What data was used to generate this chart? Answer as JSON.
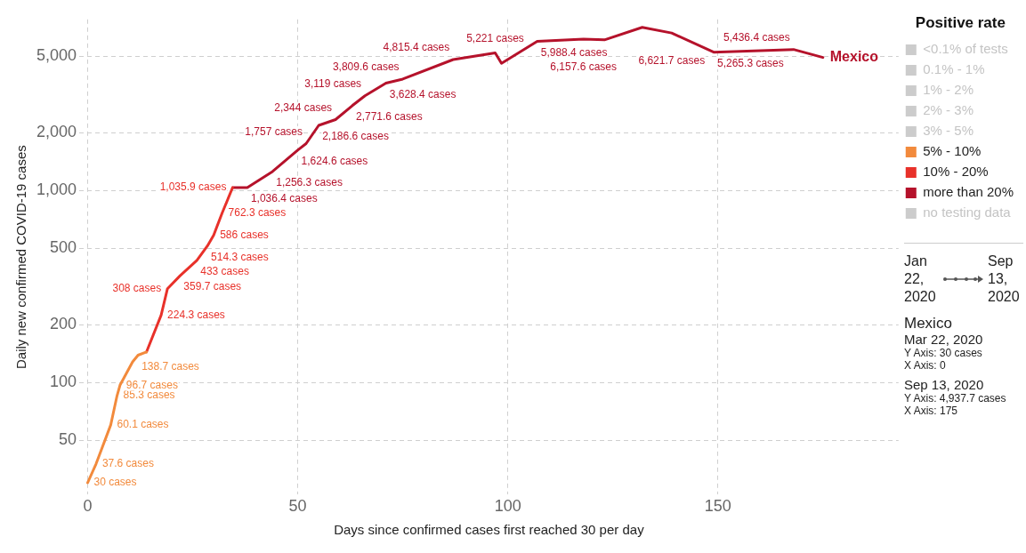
{
  "chart_data": {
    "type": "line",
    "xlabel": "Days since confirmed cases first reached 30 per day",
    "ylabel": "Daily new confirmed COVID-19 cases",
    "legend_title": "Positive rate",
    "legend": "right",
    "log": "y",
    "grid": true,
    "line_style": "solid",
    "marker": "none",
    "xlim": [
      -2,
      193
    ],
    "xticks": [
      0,
      50,
      100,
      150
    ],
    "ylim": [
      26,
      7800
    ],
    "yticks": [
      50,
      100,
      200,
      500,
      {
        "value": 1000,
        "label": "1,000"
      },
      {
        "value": 2000,
        "label": "2,000"
      },
      {
        "value": 5000,
        "label": "5,000"
      }
    ],
    "series": [
      {
        "name": "<0.1% of tests",
        "color": "#cccccc"
      },
      {
        "name": "0.1% - 1%",
        "color": "#cccccc"
      },
      {
        "name": "1% - 2%",
        "color": "#cccccc"
      },
      {
        "name": "2% - 3%",
        "color": "#cccccc"
      },
      {
        "name": "3% - 5%",
        "color": "#cccccc"
      },
      {
        "name": "5% - 10%",
        "color": "#f28a3c",
        "x": [
          0,
          2,
          5.5,
          7,
          7.7,
          10.7,
          12,
          14
        ],
        "values": [
          30,
          37.6,
          60.1,
          85.3,
          96.7,
          128,
          138.7,
          144
        ],
        "value_labels": [
          "30 cases",
          "37.6 cases",
          "60.1 cases",
          "85.3 cases",
          "96.7 cases",
          null,
          "138.7 cases",
          null
        ]
      },
      {
        "name": "10% - 20%",
        "color": "#e8312a",
        "x": [
          14,
          17.5,
          19,
          22,
          26,
          28.5,
          30,
          32,
          34.5
        ],
        "values": [
          144,
          224.3,
          308,
          359.7,
          433,
          514.3,
          586,
          762.3,
          1035.9
        ],
        "value_labels": [
          null,
          "224.3 cases",
          "308 cases",
          "359.7 cases",
          "433 cases",
          "514.3 cases",
          "586 cases",
          "762.3 cases",
          "1,035.9 cases"
        ]
      },
      {
        "name": "more than 20%",
        "color": "#b5122b",
        "x": [
          34.5,
          38,
          44,
          50,
          52,
          55,
          59,
          63,
          66,
          71,
          75,
          87,
          97,
          98.5,
          107,
          118,
          123,
          132,
          139,
          149,
          168,
          175
        ],
        "values": [
          1035.9,
          1036.4,
          1256.3,
          1624.6,
          1757,
          2186.6,
          2344,
          2771.6,
          3119,
          3628.4,
          3809.6,
          4815.4,
          5221,
          4600,
          5988.4,
          6157.6,
          6100,
          7090,
          6621.7,
          5265.3,
          5436.4,
          4937.7
        ],
        "value_labels": [
          null,
          "1,036.4 cases",
          "1,256.3 cases",
          "1,624.6 cases",
          "1,757 cases",
          "2,186.6 cases",
          "2,344 cases",
          "2,771.6 cases",
          "3,119 cases",
          "3,628.4 cases",
          "3,809.6 cases",
          "4,815.4 cases",
          "5,221 cases",
          null,
          "5,988.4 cases",
          "6,157.6 cases",
          null,
          null,
          "6,621.7 cases",
          "5,265.3 cases",
          "5,436.4 cases",
          null
        ]
      },
      {
        "name": "no testing data",
        "color": "#cccccc"
      }
    ],
    "annotations": [
      {
        "text": "Mexico",
        "x": 175,
        "y": 4937.7
      },
      "Jan 22, 2020",
      "Sep 13, 2020",
      "Mexico",
      "Mar 22, 2020",
      "Y Axis: 30 cases",
      "X Axis: 0",
      "Sep 13, 2020",
      "Y Axis: 4,937.7 cases",
      "X Axis: 175"
    ]
  }
}
